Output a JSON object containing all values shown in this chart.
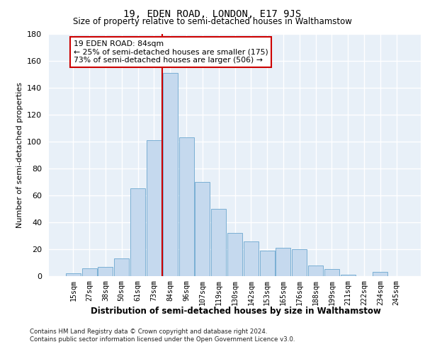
{
  "title": "19, EDEN ROAD, LONDON, E17 9JS",
  "subtitle": "Size of property relative to semi-detached houses in Walthamstow",
  "xlabel": "Distribution of semi-detached houses by size in Walthamstow",
  "ylabel": "Number of semi-detached properties",
  "footnote1": "Contains HM Land Registry data © Crown copyright and database right 2024.",
  "footnote2": "Contains public sector information licensed under the Open Government Licence v3.0.",
  "bar_labels": [
    "15sqm",
    "27sqm",
    "38sqm",
    "50sqm",
    "61sqm",
    "73sqm",
    "84sqm",
    "96sqm",
    "107sqm",
    "119sqm",
    "130sqm",
    "142sqm",
    "153sqm",
    "165sqm",
    "176sqm",
    "188sqm",
    "199sqm",
    "211sqm",
    "222sqm",
    "234sqm",
    "245sqm"
  ],
  "bar_heights": [
    2,
    6,
    7,
    13,
    65,
    101,
    151,
    103,
    70,
    50,
    32,
    26,
    19,
    21,
    20,
    8,
    5,
    1,
    0,
    3,
    0
  ],
  "bar_color": "#c5d9ee",
  "bar_edge_color": "#7aafd4",
  "ylim": [
    0,
    180
  ],
  "yticks": [
    0,
    20,
    40,
    60,
    80,
    100,
    120,
    140,
    160,
    180
  ],
  "pct_smaller": 25,
  "count_smaller": 175,
  "pct_larger": 73,
  "count_larger": 506,
  "vline_bar_index": 6,
  "vline_color": "#cc0000",
  "annotation_box_color": "#cc0000",
  "background_color": "#e8f0f8",
  "grid_color": "#ffffff"
}
